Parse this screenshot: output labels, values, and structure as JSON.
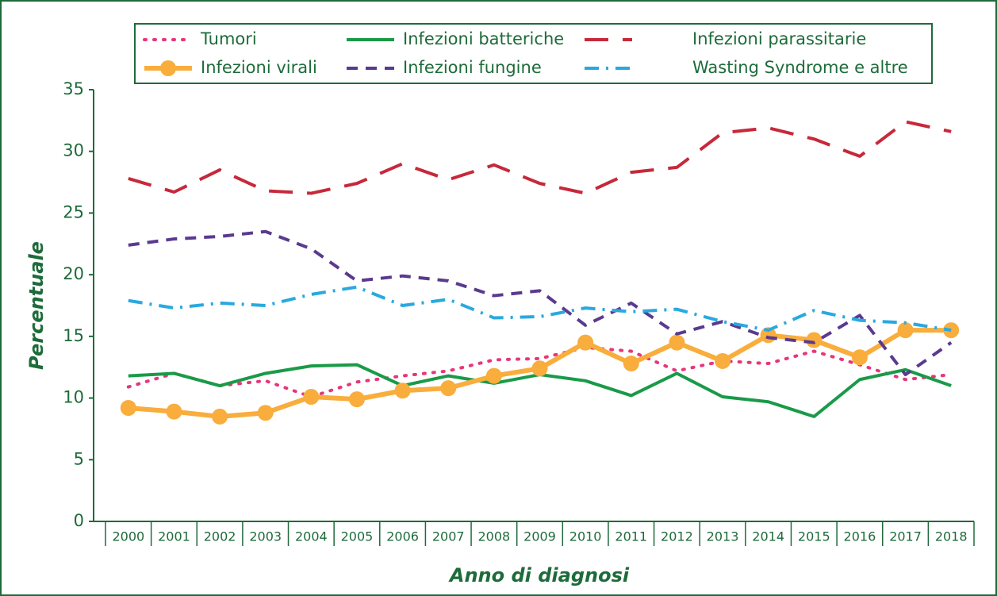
{
  "chart_data": {
    "type": "line",
    "categories": [
      "2000",
      "2001",
      "2002",
      "2003",
      "2004",
      "2005",
      "2006",
      "2007",
      "2008",
      "2009",
      "2010",
      "2011",
      "2012",
      "2013",
      "2014",
      "2015",
      "2016",
      "2017",
      "2018"
    ],
    "series": [
      {
        "name": "Tumori",
        "color": "#e6367a",
        "dash": "dotted",
        "values": [
          10.9,
          12.0,
          11.0,
          11.4,
          10.1,
          11.3,
          11.8,
          12.2,
          13.1,
          13.2,
          14.1,
          13.8,
          12.2,
          13.0,
          12.8,
          13.8,
          12.7,
          11.5,
          11.9
        ]
      },
      {
        "name": "Infezioni batteriche",
        "color": "#1a9a48",
        "dash": "solid",
        "values": [
          11.8,
          12.0,
          11.0,
          12.0,
          12.6,
          12.7,
          11.0,
          11.8,
          11.2,
          11.9,
          11.4,
          10.2,
          12.0,
          10.1,
          9.7,
          8.5,
          11.5,
          12.3,
          11.0
        ]
      },
      {
        "name": "Infezioni parassitarie",
        "color": "#c7283a",
        "dash": "long-dash",
        "values": [
          27.8,
          26.7,
          28.5,
          26.8,
          26.6,
          27.4,
          29.0,
          27.7,
          28.9,
          27.4,
          26.6,
          28.3,
          28.7,
          31.5,
          31.9,
          31.0,
          29.6,
          32.4,
          31.6
        ]
      },
      {
        "name": "Infezioni virali",
        "color": "#f9ad3c",
        "dash": "solid",
        "marker": "circle",
        "values": [
          9.2,
          8.9,
          8.5,
          8.8,
          10.1,
          9.9,
          10.6,
          10.8,
          11.8,
          12.4,
          14.5,
          12.8,
          14.5,
          13.0,
          15.1,
          14.7,
          13.3,
          15.5,
          15.5
        ]
      },
      {
        "name": "Infezioni fungine",
        "color": "#5a3a8f",
        "dash": "dash",
        "values": [
          22.4,
          22.9,
          23.1,
          23.5,
          22.1,
          19.5,
          19.9,
          19.5,
          18.3,
          18.7,
          15.9,
          17.7,
          15.2,
          16.2,
          14.9,
          14.5,
          16.7,
          11.9,
          14.5
        ]
      },
      {
        "name": "Wasting Syndrome e altre",
        "color": "#29a9e0",
        "dash": "dash-dot",
        "values": [
          17.9,
          17.3,
          17.7,
          17.5,
          18.4,
          19.0,
          17.5,
          18.0,
          16.5,
          16.6,
          17.3,
          17.0,
          17.2,
          16.2,
          15.5,
          17.1,
          16.3,
          16.1,
          15.5
        ]
      }
    ],
    "x_label": "Anno di diagnosi",
    "y_label": "Percentuale",
    "ylim": [
      0,
      35
    ],
    "yticks": [
      0,
      5,
      10,
      15,
      20,
      25,
      30,
      35
    ],
    "legend": "top"
  }
}
